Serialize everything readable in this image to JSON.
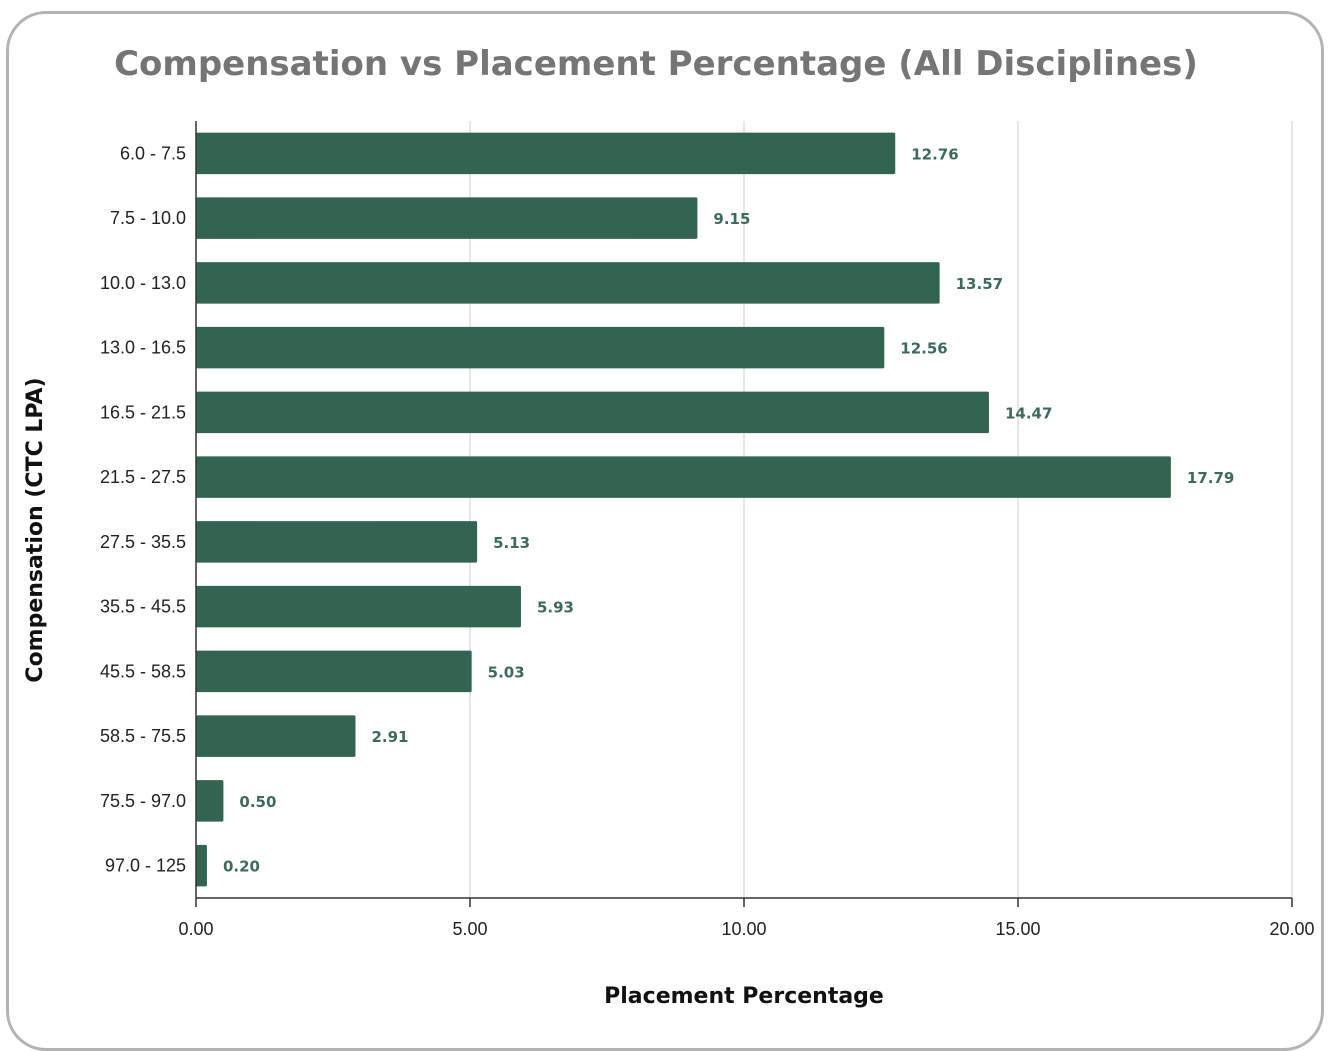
{
  "chart_data": {
    "type": "bar",
    "orientation": "horizontal",
    "title": "Compensation vs Placement Percentage (All Disciplines)",
    "xlabel": "Placement Percentage",
    "ylabel": "Compensation (CTC LPA)",
    "categories": [
      "6.0 - 7.5",
      "7.5 - 10.0",
      "10.0 - 13.0",
      "13.0 - 16.5",
      "16.5 - 21.5",
      "21.5 - 27.5",
      "27.5 - 35.5",
      "35.5 - 45.5",
      "45.5 - 58.5",
      "58.5 - 75.5",
      "75.5 - 97.0",
      "97.0 - 125"
    ],
    "values": [
      12.76,
      9.15,
      13.57,
      12.56,
      14.47,
      17.79,
      5.13,
      5.93,
      5.03,
      2.91,
      0.5,
      0.2
    ],
    "data_labels": [
      "12.76",
      "9.15",
      "13.57",
      "12.56",
      "14.47",
      "17.79",
      "5.13",
      "5.93",
      "5.03",
      "2.91",
      "0.50",
      "0.20"
    ],
    "xlim": [
      0,
      20
    ],
    "xticks": [
      0,
      5,
      10,
      15,
      20
    ],
    "xtick_labels": [
      "0.00",
      "5.00",
      "10.00",
      "15.00",
      "20.00"
    ],
    "grid": true,
    "legend": "none",
    "bar_color": "#33644f",
    "label_color": "#3d6b57"
  }
}
